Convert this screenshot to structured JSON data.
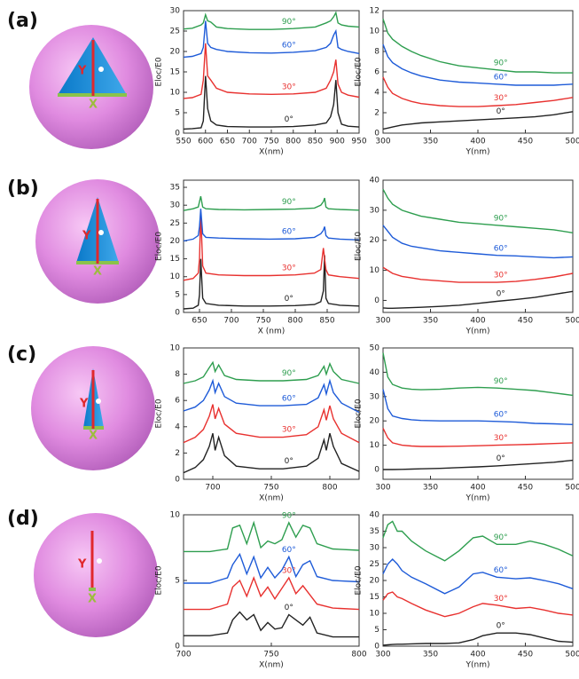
{
  "panels": [
    {
      "label": "(a)",
      "diagram": {
        "y_label": "Y",
        "x_label": "X"
      }
    },
    {
      "label": "(b)",
      "diagram": {
        "y_label": "Y",
        "x_label": "X"
      }
    },
    {
      "label": "(c)",
      "diagram": {
        "y_label": "Y",
        "x_label": "X"
      }
    },
    {
      "label": "(d)",
      "diagram": {
        "y_label": "Y",
        "x_label": "X"
      }
    }
  ],
  "chart_data": [
    {
      "type": "line",
      "xlabel": "X(nm)",
      "ylabel": "Eloc/E0",
      "xlim": [
        550,
        950
      ],
      "xticks": [
        550,
        600,
        650,
        700,
        750,
        800,
        850,
        900,
        950
      ],
      "ylim": [
        0,
        30
      ],
      "yticks": [
        0,
        5,
        10,
        15,
        20,
        25,
        30
      ],
      "x": [
        550,
        570,
        590,
        595,
        600,
        605,
        612,
        625,
        650,
        700,
        750,
        800,
        850,
        875,
        885,
        892,
        897,
        902,
        910,
        925,
        950
      ],
      "series": [
        {
          "name": "0°",
          "color": "#222222",
          "values": [
            1.0,
            1.1,
            1.3,
            3,
            14,
            6,
            3,
            2,
            1.6,
            1.5,
            1.5,
            1.6,
            2,
            2.5,
            4,
            7,
            13,
            5,
            2.2,
            1.7,
            1.5
          ]
        },
        {
          "name": "30°",
          "color": "#e8312f",
          "values": [
            8.5,
            8.7,
            9.5,
            13,
            22,
            14,
            13,
            11,
            10,
            9.6,
            9.5,
            9.6,
            10,
            11,
            13,
            15,
            18,
            12,
            10,
            9.3,
            8.8
          ]
        },
        {
          "name": "60°",
          "color": "#1e5bd8",
          "values": [
            18.6,
            18.8,
            19.5,
            21,
            27.5,
            22,
            21,
            20.5,
            20,
            19.7,
            19.6,
            19.8,
            20.2,
            21,
            22,
            24,
            25,
            21,
            20.5,
            20,
            19.5
          ]
        },
        {
          "name": "90°",
          "color": "#2e9e4f",
          "values": [
            25.5,
            25.7,
            26.5,
            27,
            29,
            27.5,
            27.2,
            26,
            25.6,
            25.4,
            25.4,
            25.6,
            26,
            27,
            27.5,
            28.5,
            29.5,
            27,
            26.5,
            26.2,
            26
          ]
        }
      ]
    },
    {
      "type": "line",
      "xlabel": "Y(nm)",
      "ylabel": "Eloc/E0",
      "xlim": [
        300,
        500
      ],
      "xticks": [
        300,
        350,
        400,
        450,
        500
      ],
      "ylim": [
        0,
        12
      ],
      "yticks": [
        0,
        2,
        4,
        6,
        8,
        10,
        12
      ],
      "x": [
        300,
        305,
        310,
        320,
        330,
        340,
        360,
        380,
        400,
        420,
        440,
        460,
        480,
        500
      ],
      "series": [
        {
          "name": "0°",
          "color": "#222222",
          "values": [
            0.4,
            0.5,
            0.6,
            0.8,
            0.9,
            1.0,
            1.1,
            1.2,
            1.3,
            1.4,
            1.5,
            1.6,
            1.8,
            2.1
          ]
        },
        {
          "name": "30°",
          "color": "#e8312f",
          "values": [
            5.5,
            4.5,
            3.9,
            3.4,
            3.1,
            2.9,
            2.7,
            2.6,
            2.6,
            2.7,
            2.8,
            3.0,
            3.2,
            3.5
          ]
        },
        {
          "name": "60°",
          "color": "#1e5bd8",
          "values": [
            8.7,
            7.5,
            6.9,
            6.3,
            5.9,
            5.6,
            5.2,
            5.0,
            4.9,
            4.8,
            4.7,
            4.7,
            4.7,
            4.8
          ]
        },
        {
          "name": "90°",
          "color": "#2e9e4f",
          "values": [
            11.2,
            9.8,
            9.2,
            8.5,
            8.0,
            7.6,
            7.0,
            6.6,
            6.4,
            6.2,
            6.0,
            6.0,
            5.9,
            5.9
          ]
        }
      ]
    },
    {
      "type": "line",
      "xlabel": "X (nm)",
      "ylabel": "Eloc/E0",
      "xlim": [
        625,
        900
      ],
      "xticks": [
        650,
        700,
        750,
        800,
        850
      ],
      "ylim": [
        0,
        37
      ],
      "yticks": [
        0,
        5,
        10,
        15,
        20,
        25,
        30,
        35
      ],
      "x": [
        625,
        640,
        648,
        650,
        652,
        655,
        660,
        680,
        720,
        760,
        800,
        830,
        840,
        844,
        846,
        848,
        852,
        870,
        900
      ],
      "series": [
        {
          "name": "0°",
          "color": "#222222",
          "values": [
            1,
            1.2,
            2,
            5,
            15,
            4,
            2.5,
            2,
            1.8,
            1.8,
            1.9,
            2.2,
            3,
            6,
            16,
            4,
            2.5,
            2,
            1.8
          ]
        },
        {
          "name": "30°",
          "color": "#e8312f",
          "values": [
            9,
            9.5,
            11,
            15,
            28,
            13,
            11,
            10.5,
            10.3,
            10.3,
            10.5,
            11,
            12,
            18,
            15,
            12,
            10.5,
            10,
            9.5
          ]
        },
        {
          "name": "60°",
          "color": "#1e5bd8",
          "values": [
            20,
            20.5,
            21.5,
            24,
            29,
            22,
            21,
            20.8,
            20.6,
            20.5,
            20.6,
            21,
            22,
            23,
            24,
            21.5,
            20.8,
            20.5,
            20.3
          ]
        },
        {
          "name": "90°",
          "color": "#2e9e4f",
          "values": [
            28.5,
            29,
            29.5,
            31,
            32.5,
            29.5,
            29,
            28.8,
            28.7,
            28.8,
            28.9,
            29.2,
            30,
            31,
            32,
            29.5,
            29,
            28.8,
            28.6
          ]
        }
      ]
    },
    {
      "type": "line",
      "xlabel": "Y(nm)",
      "ylabel": "Eloc/E0",
      "xlim": [
        300,
        500
      ],
      "xticks": [
        300,
        350,
        400,
        450,
        500
      ],
      "ylim": [
        -4,
        40
      ],
      "yticks": [
        0,
        10,
        20,
        30,
        40
      ],
      "x": [
        300,
        305,
        310,
        320,
        330,
        340,
        360,
        380,
        400,
        420,
        440,
        460,
        480,
        500
      ],
      "series": [
        {
          "name": "0°",
          "color": "#222222",
          "values": [
            -2.5,
            -2.6,
            -2.6,
            -2.5,
            -2.4,
            -2.3,
            -2,
            -1.6,
            -1,
            -0.3,
            0.3,
            1,
            2,
            3
          ]
        },
        {
          "name": "30°",
          "color": "#e8312f",
          "values": [
            11,
            10,
            9,
            8,
            7.5,
            7,
            6.5,
            6,
            6,
            6,
            6.3,
            7,
            7.8,
            9
          ]
        },
        {
          "name": "60°",
          "color": "#1e5bd8",
          "values": [
            25,
            23,
            21,
            19,
            18,
            17.5,
            16.5,
            16,
            15.5,
            15,
            14.8,
            14.5,
            14.2,
            14.5
          ]
        },
        {
          "name": "90°",
          "color": "#2e9e4f",
          "values": [
            37,
            34,
            32,
            30,
            29,
            28,
            27,
            26,
            25.5,
            25,
            24.5,
            24,
            23.5,
            22.5
          ]
        }
      ]
    },
    {
      "type": "line",
      "xlabel": "X(nm)",
      "ylabel": "Eloc/E0",
      "xlim": [
        675,
        825
      ],
      "xticks": [
        700,
        750,
        800
      ],
      "ylim": [
        0,
        10
      ],
      "yticks": [
        0,
        2,
        4,
        6,
        8,
        10
      ],
      "x": [
        675,
        685,
        692,
        697,
        700,
        702,
        705,
        710,
        720,
        740,
        760,
        780,
        790,
        795,
        797,
        800,
        803,
        810,
        825
      ],
      "series": [
        {
          "name": "0°",
          "color": "#222222",
          "values": [
            0.5,
            0.9,
            1.5,
            2.5,
            3.5,
            2.2,
            3.2,
            1.8,
            1,
            0.8,
            0.8,
            1,
            1.6,
            3,
            2.2,
            3.5,
            2.5,
            1.2,
            0.6
          ]
        },
        {
          "name": "30°",
          "color": "#e8312f",
          "values": [
            2.8,
            3.2,
            3.8,
            4.8,
            5.7,
            4.6,
            5.4,
            4.2,
            3.5,
            3.2,
            3.2,
            3.4,
            4,
            5.3,
            4.5,
            5.6,
            4.6,
            3.5,
            2.8
          ]
        },
        {
          "name": "60°",
          "color": "#1e5bd8",
          "values": [
            5.2,
            5.5,
            6,
            6.8,
            7.5,
            6.6,
            7.3,
            6.3,
            5.8,
            5.6,
            5.6,
            5.7,
            6.2,
            7.2,
            6.5,
            7.5,
            6.6,
            5.8,
            5.1
          ]
        },
        {
          "name": "90°",
          "color": "#2e9e4f",
          "values": [
            7.3,
            7.5,
            7.8,
            8.5,
            8.9,
            8.2,
            8.7,
            7.9,
            7.6,
            7.5,
            7.5,
            7.6,
            7.9,
            8.6,
            8.0,
            8.8,
            8.2,
            7.6,
            7.3
          ]
        }
      ]
    },
    {
      "type": "line",
      "xlabel": "Y(nm)",
      "ylabel": "Eloc/E0",
      "xlim": [
        300,
        500
      ],
      "xticks": [
        300,
        350,
        400,
        450,
        500
      ],
      "ylim": [
        -4,
        50
      ],
      "yticks": [
        0,
        10,
        20,
        30,
        40,
        50
      ],
      "x": [
        300,
        305,
        310,
        320,
        330,
        340,
        360,
        380,
        400,
        420,
        440,
        460,
        480,
        500
      ],
      "series": [
        {
          "name": "0°",
          "color": "#222222",
          "values": [
            0,
            0,
            0,
            0.1,
            0.2,
            0.3,
            0.5,
            0.8,
            1.1,
            1.5,
            2,
            2.5,
            3,
            3.8
          ]
        },
        {
          "name": "30°",
          "color": "#e8312f",
          "values": [
            17,
            13,
            11,
            10,
            9.7,
            9.5,
            9.5,
            9.6,
            9.8,
            10,
            10.2,
            10.4,
            10.7,
            11
          ]
        },
        {
          "name": "60°",
          "color": "#1e5bd8",
          "values": [
            33,
            25,
            22,
            21,
            20.5,
            20.2,
            20,
            20,
            20,
            19.8,
            19.5,
            19,
            18.8,
            18.5
          ]
        },
        {
          "name": "90°",
          "color": "#2e9e4f",
          "values": [
            48,
            38,
            35,
            33.5,
            33,
            32.8,
            33,
            33.5,
            33.8,
            33.5,
            33,
            32.5,
            31.5,
            30.5
          ]
        }
      ]
    },
    {
      "type": "line",
      "xlabel": "X(nm)",
      "ylabel": "Eloc/E0",
      "xlim": [
        700,
        800
      ],
      "xticks": [
        700,
        750,
        800
      ],
      "ylim": [
        0,
        10
      ],
      "yticks": [
        0,
        5,
        10
      ],
      "x": [
        700,
        715,
        725,
        728,
        732,
        736,
        740,
        744,
        748,
        752,
        756,
        760,
        764,
        768,
        772,
        776,
        785,
        800
      ],
      "series": [
        {
          "name": "0°",
          "color": "#222222",
          "values": [
            0.8,
            0.8,
            1,
            2,
            2.6,
            2,
            2.4,
            1.2,
            1.8,
            1.3,
            1.4,
            2.4,
            2,
            1.6,
            2.2,
            1,
            0.7,
            0.7
          ]
        },
        {
          "name": "30°",
          "color": "#e8312f",
          "values": [
            2.8,
            2.8,
            3.2,
            4.5,
            5,
            3.8,
            5.2,
            3.8,
            4.5,
            3.6,
            4.4,
            5.2,
            4,
            4.6,
            3.9,
            3.2,
            2.9,
            2.8
          ]
        },
        {
          "name": "60°",
          "color": "#1e5bd8",
          "values": [
            4.8,
            4.8,
            5.2,
            6.2,
            7,
            5.5,
            6.8,
            5.2,
            6,
            5.2,
            5.8,
            6.8,
            5.3,
            6.2,
            6.5,
            5.3,
            5,
            4.9
          ]
        },
        {
          "name": "90°",
          "color": "#2e9e4f",
          "values": [
            7.2,
            7.2,
            7.4,
            9,
            9.2,
            7.8,
            9.4,
            7.5,
            8,
            7.8,
            8.1,
            9.4,
            8.3,
            9.2,
            9,
            7.8,
            7.4,
            7.3
          ]
        }
      ]
    },
    {
      "type": "line",
      "xlabel": "Y(nm)",
      "ylabel": "Eloc/E0",
      "xlim": [
        300,
        500
      ],
      "xticks": [
        300,
        350,
        400,
        450,
        500
      ],
      "ylim": [
        0,
        40
      ],
      "yticks": [
        0,
        5,
        10,
        15,
        20,
        25,
        30,
        35,
        40
      ],
      "x": [
        300,
        305,
        310,
        315,
        320,
        330,
        345,
        365,
        380,
        395,
        405,
        420,
        440,
        455,
        470,
        485,
        500
      ],
      "series": [
        {
          "name": "0°",
          "color": "#222222",
          "values": [
            0.3,
            0.4,
            0.5,
            0.6,
            0.6,
            0.7,
            0.8,
            0.8,
            1,
            2,
            3.2,
            4,
            4,
            3.5,
            2.5,
            1.5,
            1.2
          ]
        },
        {
          "name": "30°",
          "color": "#e8312f",
          "values": [
            14,
            16,
            16.5,
            15,
            14.5,
            13,
            11,
            9,
            10,
            12,
            13,
            12.5,
            11.5,
            11.8,
            11,
            10,
            9.5
          ]
        },
        {
          "name": "60°",
          "color": "#1e5bd8",
          "values": [
            22,
            25,
            26.5,
            25,
            23,
            21,
            19,
            16,
            18,
            22,
            22.5,
            21,
            20.5,
            20.8,
            20,
            19,
            17.5
          ]
        },
        {
          "name": "90°",
          "color": "#2e9e4f",
          "values": [
            33,
            37,
            38,
            35,
            35,
            32,
            29,
            26,
            29,
            33,
            33.5,
            31,
            31,
            32,
            31,
            29.5,
            27.5
          ]
        }
      ]
    }
  ]
}
